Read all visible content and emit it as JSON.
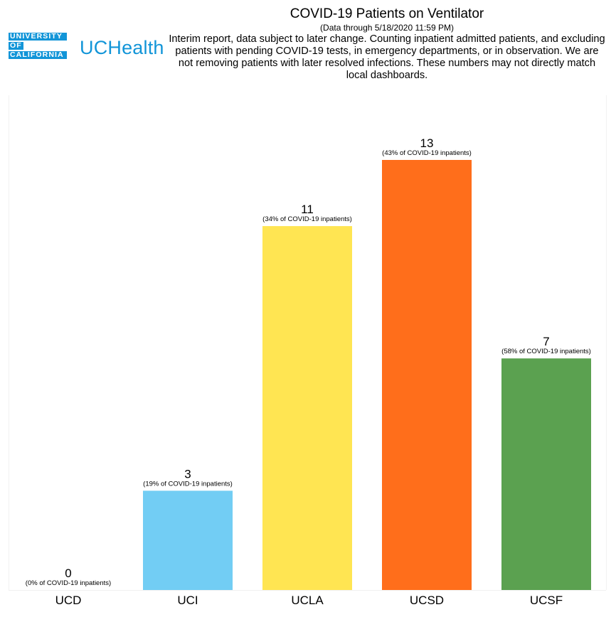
{
  "logo": {
    "university_lines": [
      "UNIVERSITY",
      "OF",
      "CALIFORNIA"
    ],
    "uchealth": "UCHealth",
    "brand_color": "#1295d8"
  },
  "header": {
    "title": "COVID-19 Patients on Ventilator",
    "subtitle": "(Data through 5/18/2020 11:59 PM)",
    "note": "Interim report, data subject to later change. Counting inpatient admitted patients, and excluding patients with pending COVID-19 tests, in emergency departments, or in observation. We are not removing patients with later resolved infections. These numbers may not directly match local dashboards."
  },
  "chart_data": {
    "type": "bar",
    "title": "COVID-19 Patients on Ventilator",
    "xlabel": "",
    "ylabel": "",
    "ylim": [
      0,
      13
    ],
    "grid": false,
    "categories": [
      "UCD",
      "UCI",
      "UCLA",
      "UCSD",
      "UCSF"
    ],
    "values": [
      0,
      3,
      11,
      13,
      7
    ],
    "percent_labels": [
      "(0% of COVID-19 inpatients)",
      "(19% of COVID-19 inpatients)",
      "(34% of COVID-19 inpatients)",
      "(43% of COVID-19 inpatients)",
      "(58% of COVID-19 inpatients)"
    ],
    "colors": [
      "#4e79a7",
      "#72cdf4",
      "#ffe552",
      "#ff6e1b",
      "#5ba150"
    ]
  }
}
